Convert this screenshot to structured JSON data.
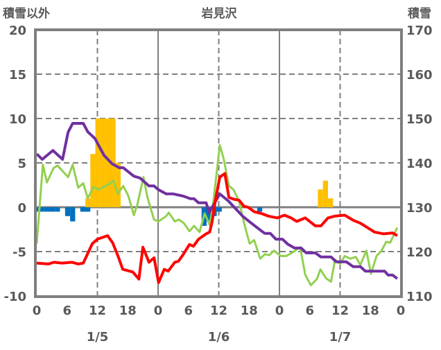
{
  "chart_data": {
    "type": "line",
    "title": "岩見沢",
    "ylabel_left": "積雪以外",
    "ylabel_right": "積雪",
    "ylim_left": [
      -10,
      20
    ],
    "ylim_right": [
      110,
      170
    ],
    "yticks_left": [
      "20",
      "15",
      "10",
      "5",
      "0",
      "-5",
      "-10"
    ],
    "yticks_right": [
      "170",
      "160",
      "150",
      "140",
      "130",
      "120",
      "110"
    ],
    "xlim_hours": [
      0,
      72
    ],
    "xticks": [
      "0",
      "6",
      "12",
      "18",
      "0",
      "6",
      "12",
      "18",
      "0",
      "6",
      "12",
      "18",
      "0"
    ],
    "date_labels": [
      {
        "label": "1/5",
        "hour": 12
      },
      {
        "label": "1/6",
        "hour": 36
      },
      {
        "label": "1/7",
        "hour": 60
      }
    ],
    "grid": "dashed at y 15,10,5,-5 and at 12h; solid at day boundaries",
    "colors": {
      "temperature": "#ff0000",
      "green": "#92d050",
      "snow_depth": "#7030a0",
      "snowfall": "#ffc000",
      "decrease": "#0070c0",
      "axis": "#7f7f7f"
    },
    "bars_positive": [
      [
        10,
        1.0
      ],
      [
        11,
        6.0
      ],
      [
        12,
        10
      ],
      [
        13,
        10
      ],
      [
        14,
        10
      ],
      [
        15,
        10
      ],
      [
        16,
        5.0
      ],
      [
        56,
        2.0
      ],
      [
        57,
        3.0
      ],
      [
        58,
        1.0
      ]
    ],
    "bars_negative": [
      [
        0,
        -0.5
      ],
      [
        1,
        -0.5
      ],
      [
        2,
        -0.5
      ],
      [
        3,
        -0.5
      ],
      [
        4,
        -0.5
      ],
      [
        6,
        -1.0
      ],
      [
        7,
        -1.6
      ],
      [
        9,
        -0.5
      ],
      [
        10,
        -0.5
      ],
      [
        33,
        -2.1
      ],
      [
        34,
        -1.5
      ],
      [
        35,
        -1.0
      ],
      [
        36,
        -0.5
      ],
      [
        44,
        -0.5
      ]
    ],
    "series": [
      {
        "name": "red",
        "axis": "left",
        "points": [
          [
            0,
            -6.3
          ],
          [
            2.3,
            -6.4
          ],
          [
            3.4,
            -6.2
          ],
          [
            5,
            -6.3
          ],
          [
            7,
            -6.2
          ],
          [
            8.2,
            -6.4
          ],
          [
            9.2,
            -6.3
          ],
          [
            11,
            -4.1
          ],
          [
            12,
            -3.6
          ],
          [
            14,
            -3.2
          ],
          [
            15,
            -4
          ],
          [
            16,
            -5.4
          ],
          [
            17,
            -7
          ],
          [
            19,
            -7.3
          ],
          [
            20.2,
            -8.1
          ],
          [
            21,
            -4.5
          ],
          [
            22.2,
            -6.2
          ],
          [
            23.2,
            -5.7
          ],
          [
            24.1,
            -8.5
          ],
          [
            25.2,
            -7
          ],
          [
            26,
            -7.2
          ],
          [
            27.3,
            -6.2
          ],
          [
            28,
            -6.1
          ],
          [
            29,
            -5.3
          ],
          [
            30.2,
            -4.2
          ],
          [
            31,
            -4.4
          ],
          [
            32,
            -3.6
          ],
          [
            33.5,
            -3
          ],
          [
            34.2,
            -2.8
          ],
          [
            34.7,
            -1.6
          ],
          [
            35.3,
            0.7
          ],
          [
            36.2,
            3.4
          ],
          [
            37.2,
            3.8
          ],
          [
            38,
            1.1
          ],
          [
            39,
            0.9
          ],
          [
            40,
            0.8
          ],
          [
            41,
            0.1
          ],
          [
            41.8,
            0
          ],
          [
            43,
            -0.5
          ],
          [
            44.4,
            -0.7
          ],
          [
            45.8,
            -1
          ],
          [
            47.6,
            -1.2
          ],
          [
            49,
            -0.9
          ],
          [
            50.3,
            -1.2
          ],
          [
            51.4,
            -1.6
          ],
          [
            53.1,
            -1.2
          ],
          [
            55.1,
            -2.1
          ],
          [
            56.2,
            -2.1
          ],
          [
            57.6,
            -1.2
          ],
          [
            59,
            -1.0
          ],
          [
            60.9,
            -0.9
          ],
          [
            62.7,
            -1.5
          ],
          [
            64,
            -1.8
          ],
          [
            66.8,
            -2.8
          ],
          [
            68.6,
            -3.0
          ],
          [
            70.4,
            -2.9
          ],
          [
            71.3,
            -3.2
          ]
        ]
      },
      {
        "name": "green",
        "axis": "left",
        "points": [
          [
            0,
            -4.1
          ],
          [
            1.2,
            4.8
          ],
          [
            2,
            2.8
          ],
          [
            3.3,
            4.4
          ],
          [
            4.1,
            4.7
          ],
          [
            6.2,
            3.4
          ],
          [
            7.1,
            4.8
          ],
          [
            8.2,
            2.2
          ],
          [
            9.2,
            2.7
          ],
          [
            10.1,
            1.0
          ],
          [
            11.2,
            2.3
          ],
          [
            12.2,
            2.0
          ],
          [
            14,
            2.5
          ],
          [
            15.2,
            3.0
          ],
          [
            16,
            1.5
          ],
          [
            17.1,
            2.4
          ],
          [
            18.1,
            1.3
          ],
          [
            19.2,
            -0.9
          ],
          [
            19.9,
            0.3
          ],
          [
            21.1,
            3.4
          ],
          [
            21.9,
            1.1
          ],
          [
            23.2,
            -1.4
          ],
          [
            24.1,
            -1.6
          ],
          [
            25.6,
            -1.0
          ],
          [
            26.1,
            -0.6
          ],
          [
            27.3,
            -1.6
          ],
          [
            28.1,
            -1.4
          ],
          [
            29.1,
            -1.8
          ],
          [
            30.2,
            -2.7
          ],
          [
            31.1,
            -2.1
          ],
          [
            32.2,
            -2.8
          ],
          [
            33.2,
            -0.7
          ],
          [
            34.2,
            -2.0
          ],
          [
            34.8,
            0
          ],
          [
            36.2,
            7.0
          ],
          [
            37,
            5.4
          ],
          [
            38,
            2.4
          ],
          [
            38.9,
            2.0
          ],
          [
            40,
            0.7
          ],
          [
            41.1,
            -2.0
          ],
          [
            42.1,
            -4.1
          ],
          [
            43,
            -3.7
          ],
          [
            44.2,
            -5.8
          ],
          [
            45.1,
            -5.3
          ],
          [
            46,
            -5.4
          ],
          [
            46.9,
            -4.9
          ],
          [
            48.3,
            -5.5
          ],
          [
            49.3,
            -5.5
          ],
          [
            50.3,
            -5.2
          ],
          [
            52.1,
            -4.5
          ],
          [
            53.1,
            -7.6
          ],
          [
            54.2,
            -8.8
          ],
          [
            55.4,
            -8.1
          ],
          [
            56.1,
            -7
          ],
          [
            57.2,
            -8
          ],
          [
            58.2,
            -8.4
          ],
          [
            59,
            -5.9
          ],
          [
            60,
            -6.4
          ],
          [
            60.9,
            -5.5
          ],
          [
            62,
            -5.8
          ],
          [
            63.1,
            -5.6
          ],
          [
            64,
            -6.5
          ],
          [
            65.2,
            -4.9
          ],
          [
            66.1,
            -7.5
          ],
          [
            67.2,
            -5.5
          ],
          [
            68.2,
            -4.9
          ],
          [
            69.1,
            -3.9
          ],
          [
            69.9,
            -4.0
          ],
          [
            71.3,
            -2.3
          ]
        ]
      },
      {
        "name": "purple",
        "axis": "right",
        "points": [
          [
            0,
            142
          ],
          [
            1.1,
            140.8
          ],
          [
            3.2,
            142.8
          ],
          [
            5.1,
            140.8
          ],
          [
            6.2,
            146.9
          ],
          [
            7.1,
            148.9
          ],
          [
            9.2,
            148.9
          ],
          [
            10.1,
            147
          ],
          [
            11.5,
            145.5
          ],
          [
            13.3,
            141.7
          ],
          [
            14.9,
            139.8
          ],
          [
            16.3,
            138.9
          ],
          [
            17.1,
            138.9
          ],
          [
            19.2,
            137
          ],
          [
            20.4,
            136.6
          ],
          [
            22.2,
            134.8
          ],
          [
            23.2,
            134.8
          ],
          [
            24,
            134
          ],
          [
            25.6,
            133
          ],
          [
            27,
            133
          ],
          [
            29,
            132.5
          ],
          [
            30.4,
            131.9
          ],
          [
            31.1,
            131.9
          ],
          [
            32,
            131
          ],
          [
            33.5,
            131
          ],
          [
            34.1,
            128.8
          ],
          [
            36.2,
            133
          ],
          [
            37.9,
            131.4
          ],
          [
            39.3,
            129.7
          ],
          [
            40.7,
            128
          ],
          [
            42.1,
            126.7
          ],
          [
            43.8,
            125.2
          ],
          [
            45.1,
            124.1
          ],
          [
            46.2,
            124.1
          ],
          [
            47.3,
            122.8
          ],
          [
            48.6,
            122.8
          ],
          [
            49.6,
            121.7
          ],
          [
            51,
            120.8
          ],
          [
            52.3,
            120.8
          ],
          [
            53.3,
            119.7
          ],
          [
            55.1,
            119.7
          ],
          [
            56.2,
            118.8
          ],
          [
            58.2,
            118.8
          ],
          [
            59.2,
            117.7
          ],
          [
            61.2,
            117.7
          ],
          [
            62.6,
            116.6
          ],
          [
            64,
            116.6
          ],
          [
            65,
            115.6
          ],
          [
            68.8,
            115.6
          ],
          [
            69.5,
            114.7
          ],
          [
            70.4,
            114.7
          ],
          [
            71.3,
            113.9
          ]
        ]
      }
    ]
  }
}
